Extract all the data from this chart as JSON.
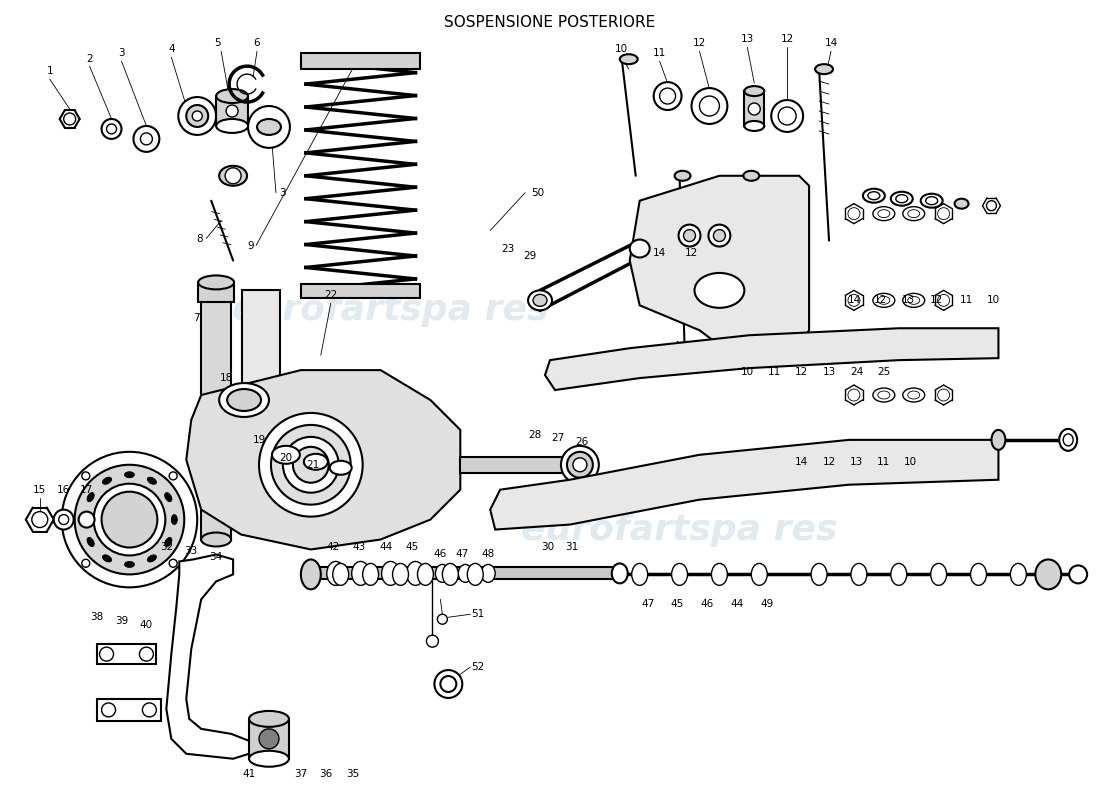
{
  "title": "SOSPENSIONE POSTERIORE",
  "bg_color": "#ffffff",
  "line_color": "#000000",
  "watermark1": "eurofartspa res",
  "watermark2": "eurofartspa res",
  "wm_color": "#aac4d8",
  "wm_alpha": 0.35,
  "fig_width": 11.0,
  "fig_height": 8.0,
  "dpi": 100
}
